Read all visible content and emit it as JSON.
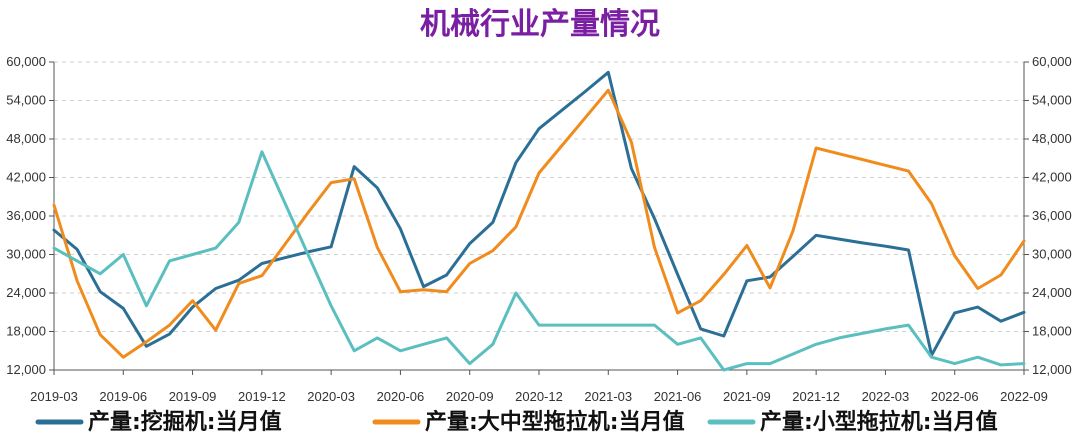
{
  "chart_data": {
    "type": "line",
    "title": "机械行业产量情况",
    "xlabel": "",
    "ylabel": "",
    "ylim": [
      12000,
      60000
    ],
    "yticks": [
      12000,
      18000,
      24000,
      30000,
      36000,
      42000,
      48000,
      54000,
      60000
    ],
    "ytick_labels": [
      "12,000",
      "18,000",
      "24,000",
      "30,000",
      "36,000",
      "42,000",
      "48,000",
      "54,000",
      "60,000"
    ],
    "x_start": "2019-03",
    "x_count": 43,
    "xtick_labels": [
      "2019-03",
      "2019-06",
      "2019-09",
      "2019-12",
      "2020-03",
      "2020-06",
      "2020-09",
      "2020-12",
      "2021-03",
      "2021-06",
      "2021-09",
      "2021-12",
      "2022-03",
      "2022-06",
      "2022-09"
    ],
    "grid": true,
    "legend_position": "bottom",
    "series": [
      {
        "name": "产量:挖掘机:当月值",
        "color": "#2b6f96",
        "values": [
          33800,
          30800,
          24200,
          21600,
          15700,
          17600,
          21800,
          24700,
          26000,
          28600,
          29500,
          30400,
          31200,
          43700,
          40400,
          34000,
          25000,
          26800,
          31700,
          35000,
          44300,
          49600,
          52500,
          55400,
          58400,
          43400,
          35600,
          26900,
          18400,
          17300,
          25900,
          26500,
          29700,
          33000,
          32400,
          31800,
          31300,
          30700,
          14300,
          20900,
          21800,
          19600,
          21000
        ]
      },
      {
        "name": "产量:大中型拖拉机:当月值",
        "color": "#f08c1e",
        "values": [
          37700,
          25900,
          17500,
          14000,
          16400,
          19000,
          22800,
          18200,
          25500,
          26700,
          31600,
          36500,
          41200,
          41800,
          31100,
          24200,
          24500,
          24200,
          28600,
          30600,
          34300,
          42700,
          47000,
          51300,
          55600,
          47500,
          31100,
          20900,
          22800,
          26900,
          31400,
          24800,
          33700,
          46600,
          45700,
          44800,
          43900,
          43000,
          37900,
          29800,
          24700,
          26800,
          32100
        ]
      },
      {
        "name": "产量:小型拖拉机:当月值",
        "color": "#5bbfc0",
        "values": [
          31000,
          29000,
          27000,
          30000,
          22000,
          29000,
          30000,
          31000,
          35000,
          46000,
          38000,
          30000,
          22000,
          15000,
          17000,
          15000,
          16000,
          17000,
          13000,
          16000,
          24000,
          19000,
          19000,
          19000,
          19000,
          19000,
          19000,
          16000,
          17000,
          12000,
          13000,
          13000,
          14500,
          16000,
          17000,
          17700,
          18400,
          19000,
          14000,
          13000,
          14000,
          12800,
          13000
        ]
      }
    ]
  }
}
